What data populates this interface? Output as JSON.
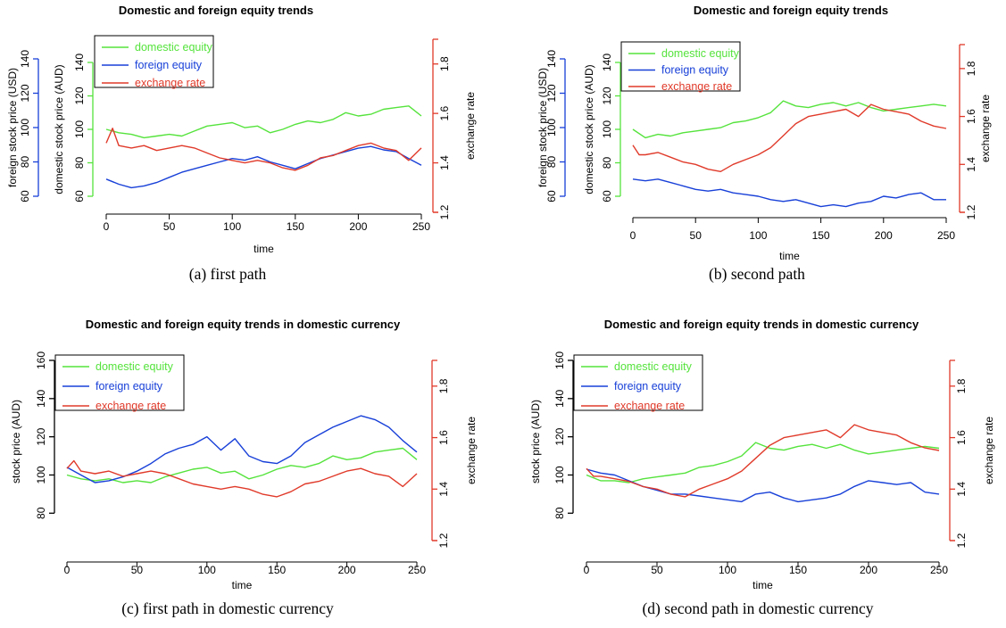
{
  "figure": {
    "panels": [
      {
        "id": "a",
        "caption": "(a) first path"
      },
      {
        "id": "b",
        "caption": "(b) second path"
      },
      {
        "id": "c",
        "caption": "(c) first path in domestic currency"
      },
      {
        "id": "d",
        "caption": "(d) second path in domestic currency"
      }
    ]
  },
  "colors": {
    "domestic": "#55e33c",
    "foreign": "#1840d8",
    "exchange": "#e03a2a",
    "axis_black": "#000000"
  },
  "chart_data": [
    {
      "type": "line",
      "title": "Domestic and foreign equity trends",
      "xlabel": "time",
      "xlim": [
        0,
        250
      ],
      "x_ticks": [
        "0",
        "50",
        "100",
        "150",
        "200",
        "250"
      ],
      "axes": {
        "foreign": {
          "label": "foreign stock price (USD)",
          "range": [
            60,
            140
          ],
          "ticks": [
            "60",
            "80",
            "100",
            "120",
            "140"
          ]
        },
        "domestic": {
          "label": "domestic stock price (AUD)",
          "range": [
            60,
            140
          ],
          "ticks": [
            "60",
            "80",
            "100",
            "120",
            "140"
          ]
        },
        "exchange": {
          "label": "exchange rate",
          "range": [
            1.2,
            1.9
          ],
          "ticks": [
            "1.2",
            "1.4",
            "1.6",
            "1.8"
          ]
        }
      },
      "legend": {
        "position": "top-left",
        "entries": [
          "domestic equity",
          "foreign equity",
          "exchange rate"
        ]
      },
      "series": [
        {
          "name": "domestic equity",
          "axis": "domestic",
          "x": [
            0,
            10,
            20,
            30,
            40,
            50,
            60,
            70,
            80,
            90,
            100,
            110,
            120,
            130,
            140,
            150,
            160,
            170,
            180,
            190,
            200,
            210,
            220,
            230,
            240,
            250
          ],
          "values": [
            100,
            98,
            97,
            95,
            96,
            97,
            96,
            99,
            102,
            103,
            104,
            101,
            102,
            98,
            100,
            103,
            105,
            104,
            106,
            110,
            108,
            109,
            112,
            113,
            114,
            108
          ]
        },
        {
          "name": "foreign equity",
          "axis": "foreign",
          "x": [
            0,
            10,
            20,
            30,
            40,
            50,
            60,
            70,
            80,
            90,
            100,
            110,
            120,
            130,
            140,
            150,
            160,
            170,
            180,
            190,
            200,
            210,
            220,
            230,
            240,
            250
          ],
          "values": [
            70,
            67,
            65,
            66,
            68,
            71,
            74,
            76,
            78,
            80,
            82,
            81,
            83,
            80,
            78,
            76,
            79,
            82,
            84,
            86,
            88,
            89,
            87,
            86,
            82,
            78
          ]
        },
        {
          "name": "exchange rate",
          "axis": "exchange",
          "x": [
            0,
            5,
            10,
            20,
            30,
            40,
            50,
            60,
            70,
            80,
            90,
            100,
            110,
            120,
            130,
            140,
            150,
            160,
            170,
            180,
            190,
            200,
            210,
            220,
            230,
            240,
            250
          ],
          "values": [
            1.48,
            1.54,
            1.47,
            1.46,
            1.47,
            1.45,
            1.46,
            1.47,
            1.46,
            1.44,
            1.42,
            1.41,
            1.4,
            1.41,
            1.4,
            1.38,
            1.37,
            1.39,
            1.42,
            1.43,
            1.45,
            1.47,
            1.48,
            1.46,
            1.45,
            1.41,
            1.46
          ]
        }
      ]
    },
    {
      "type": "line",
      "title": "Domestic and foreign equity trends",
      "xlabel": "time",
      "xlim": [
        0,
        250
      ],
      "x_ticks": [
        "0",
        "50",
        "100",
        "150",
        "200",
        "250"
      ],
      "axes": {
        "foreign": {
          "label": "foreign stock price (USD)",
          "range": [
            60,
            140
          ],
          "ticks": [
            "60",
            "80",
            "100",
            "120",
            "140"
          ]
        },
        "domestic": {
          "label": "domestic stock price (AUD)",
          "range": [
            60,
            140
          ],
          "ticks": [
            "60",
            "80",
            "100",
            "120",
            "140"
          ]
        },
        "exchange": {
          "label": "exchange rate",
          "range": [
            1.2,
            1.9
          ],
          "ticks": [
            "1.2",
            "1.4",
            "1.6",
            "1.8"
          ]
        }
      },
      "legend": {
        "position": "top-left",
        "entries": [
          "domestic equity",
          "foreign equity",
          "exchange rate"
        ]
      },
      "series": [
        {
          "name": "domestic equity",
          "axis": "domestic",
          "x": [
            0,
            10,
            20,
            30,
            40,
            50,
            60,
            70,
            80,
            90,
            100,
            110,
            120,
            130,
            140,
            150,
            160,
            170,
            180,
            190,
            200,
            210,
            220,
            230,
            240,
            250
          ],
          "values": [
            100,
            95,
            97,
            96,
            98,
            99,
            100,
            101,
            104,
            105,
            107,
            110,
            117,
            114,
            113,
            115,
            116,
            114,
            116,
            113,
            111,
            112,
            113,
            114,
            115,
            114
          ]
        },
        {
          "name": "foreign equity",
          "axis": "foreign",
          "x": [
            0,
            10,
            20,
            30,
            40,
            50,
            60,
            70,
            80,
            90,
            100,
            110,
            120,
            130,
            140,
            150,
            160,
            170,
            180,
            190,
            200,
            210,
            220,
            230,
            240,
            250
          ],
          "values": [
            70,
            69,
            70,
            68,
            66,
            64,
            63,
            64,
            62,
            61,
            60,
            58,
            57,
            58,
            56,
            54,
            55,
            54,
            56,
            57,
            60,
            59,
            61,
            62,
            58,
            58
          ]
        },
        {
          "name": "exchange rate",
          "axis": "exchange",
          "x": [
            0,
            5,
            10,
            20,
            30,
            40,
            50,
            60,
            70,
            80,
            90,
            100,
            110,
            120,
            130,
            140,
            150,
            160,
            170,
            180,
            190,
            200,
            210,
            220,
            230,
            240,
            250
          ],
          "values": [
            1.48,
            1.44,
            1.44,
            1.45,
            1.43,
            1.41,
            1.4,
            1.38,
            1.37,
            1.4,
            1.42,
            1.44,
            1.47,
            1.52,
            1.57,
            1.6,
            1.61,
            1.62,
            1.63,
            1.6,
            1.65,
            1.63,
            1.62,
            1.61,
            1.58,
            1.56,
            1.55
          ]
        }
      ]
    },
    {
      "type": "line",
      "title": "Domestic and foreign equity trends in domestic currency",
      "xlabel": "time",
      "xlim": [
        0,
        250
      ],
      "x_ticks": [
        "0",
        "50",
        "100",
        "150",
        "200",
        "250"
      ],
      "axes": {
        "domestic": {
          "label": "stock price (AUD)",
          "range": [
            75,
            160
          ],
          "ticks": [
            "80",
            "100",
            "120",
            "140",
            "160"
          ]
        },
        "exchange": {
          "label": "exchange rate",
          "range": [
            1.2,
            1.9
          ],
          "ticks": [
            "1.2",
            "1.4",
            "1.6",
            "1.8"
          ]
        }
      },
      "legend": {
        "position": "top-left",
        "entries": [
          "domestic equity",
          "foreign equity",
          "exchange rate"
        ]
      },
      "series": [
        {
          "name": "domestic equity",
          "axis": "domestic",
          "x": [
            0,
            10,
            20,
            30,
            40,
            50,
            60,
            70,
            80,
            90,
            100,
            110,
            120,
            130,
            140,
            150,
            160,
            170,
            180,
            190,
            200,
            210,
            220,
            230,
            240,
            250
          ],
          "values": [
            100,
            98,
            97,
            98,
            96,
            97,
            96,
            99,
            101,
            103,
            104,
            101,
            102,
            98,
            100,
            103,
            105,
            104,
            106,
            110,
            108,
            109,
            112,
            113,
            114,
            108
          ]
        },
        {
          "name": "foreign equity",
          "axis": "domestic",
          "x": [
            0,
            10,
            20,
            30,
            40,
            50,
            60,
            70,
            80,
            90,
            100,
            110,
            120,
            130,
            140,
            150,
            160,
            170,
            180,
            190,
            200,
            210,
            220,
            230,
            240,
            250
          ],
          "values": [
            104,
            100,
            96,
            97,
            99,
            102,
            106,
            111,
            114,
            116,
            120,
            113,
            119,
            110,
            107,
            106,
            110,
            117,
            121,
            125,
            128,
            131,
            129,
            125,
            118,
            112
          ]
        },
        {
          "name": "exchange rate",
          "axis": "exchange",
          "x": [
            0,
            5,
            10,
            20,
            30,
            40,
            50,
            60,
            70,
            80,
            90,
            100,
            110,
            120,
            130,
            140,
            150,
            160,
            170,
            180,
            190,
            200,
            210,
            220,
            230,
            240,
            250
          ],
          "values": [
            1.48,
            1.51,
            1.47,
            1.46,
            1.47,
            1.45,
            1.46,
            1.47,
            1.46,
            1.44,
            1.42,
            1.41,
            1.4,
            1.41,
            1.4,
            1.38,
            1.37,
            1.39,
            1.42,
            1.43,
            1.45,
            1.47,
            1.48,
            1.46,
            1.45,
            1.41,
            1.46
          ]
        }
      ]
    },
    {
      "type": "line",
      "title": "Domestic and foreign equity trends in domestic currency",
      "xlabel": "time",
      "xlim": [
        0,
        250
      ],
      "x_ticks": [
        "0",
        "50",
        "100",
        "150",
        "200",
        "250"
      ],
      "axes": {
        "domestic": {
          "label": "stock price (AUD)",
          "range": [
            75,
            160
          ],
          "ticks": [
            "80",
            "100",
            "120",
            "140",
            "160"
          ]
        },
        "exchange": {
          "label": "exchange rate",
          "range": [
            1.2,
            1.9
          ],
          "ticks": [
            "1.2",
            "1.4",
            "1.6",
            "1.8"
          ]
        }
      },
      "legend": {
        "position": "top-left",
        "entries": [
          "domestic equity",
          "foreign equity",
          "exchange rate"
        ]
      },
      "series": [
        {
          "name": "domestic equity",
          "axis": "domestic",
          "x": [
            0,
            10,
            20,
            30,
            40,
            50,
            60,
            70,
            80,
            90,
            100,
            110,
            120,
            130,
            140,
            150,
            160,
            170,
            180,
            190,
            200,
            210,
            220,
            230,
            240,
            250
          ],
          "values": [
            100,
            97,
            97,
            96,
            98,
            99,
            100,
            101,
            104,
            105,
            107,
            110,
            117,
            114,
            113,
            115,
            116,
            114,
            116,
            113,
            111,
            112,
            113,
            114,
            115,
            114
          ]
        },
        {
          "name": "foreign equity",
          "axis": "domestic",
          "x": [
            0,
            10,
            20,
            30,
            40,
            50,
            60,
            70,
            80,
            90,
            100,
            110,
            120,
            130,
            140,
            150,
            160,
            170,
            180,
            190,
            200,
            210,
            220,
            230,
            240,
            250
          ],
          "values": [
            103,
            101,
            100,
            97,
            94,
            92,
            90,
            90,
            89,
            88,
            87,
            86,
            90,
            91,
            88,
            86,
            87,
            88,
            90,
            94,
            97,
            96,
            95,
            96,
            91,
            90
          ]
        },
        {
          "name": "exchange rate",
          "axis": "exchange",
          "x": [
            0,
            5,
            10,
            20,
            30,
            40,
            50,
            60,
            70,
            80,
            90,
            100,
            110,
            120,
            130,
            140,
            150,
            160,
            170,
            180,
            190,
            200,
            210,
            220,
            230,
            240,
            250
          ],
          "values": [
            1.48,
            1.45,
            1.45,
            1.44,
            1.43,
            1.41,
            1.4,
            1.38,
            1.37,
            1.4,
            1.42,
            1.44,
            1.47,
            1.52,
            1.57,
            1.6,
            1.61,
            1.62,
            1.63,
            1.6,
            1.65,
            1.63,
            1.62,
            1.61,
            1.58,
            1.56,
            1.55
          ]
        }
      ]
    }
  ]
}
